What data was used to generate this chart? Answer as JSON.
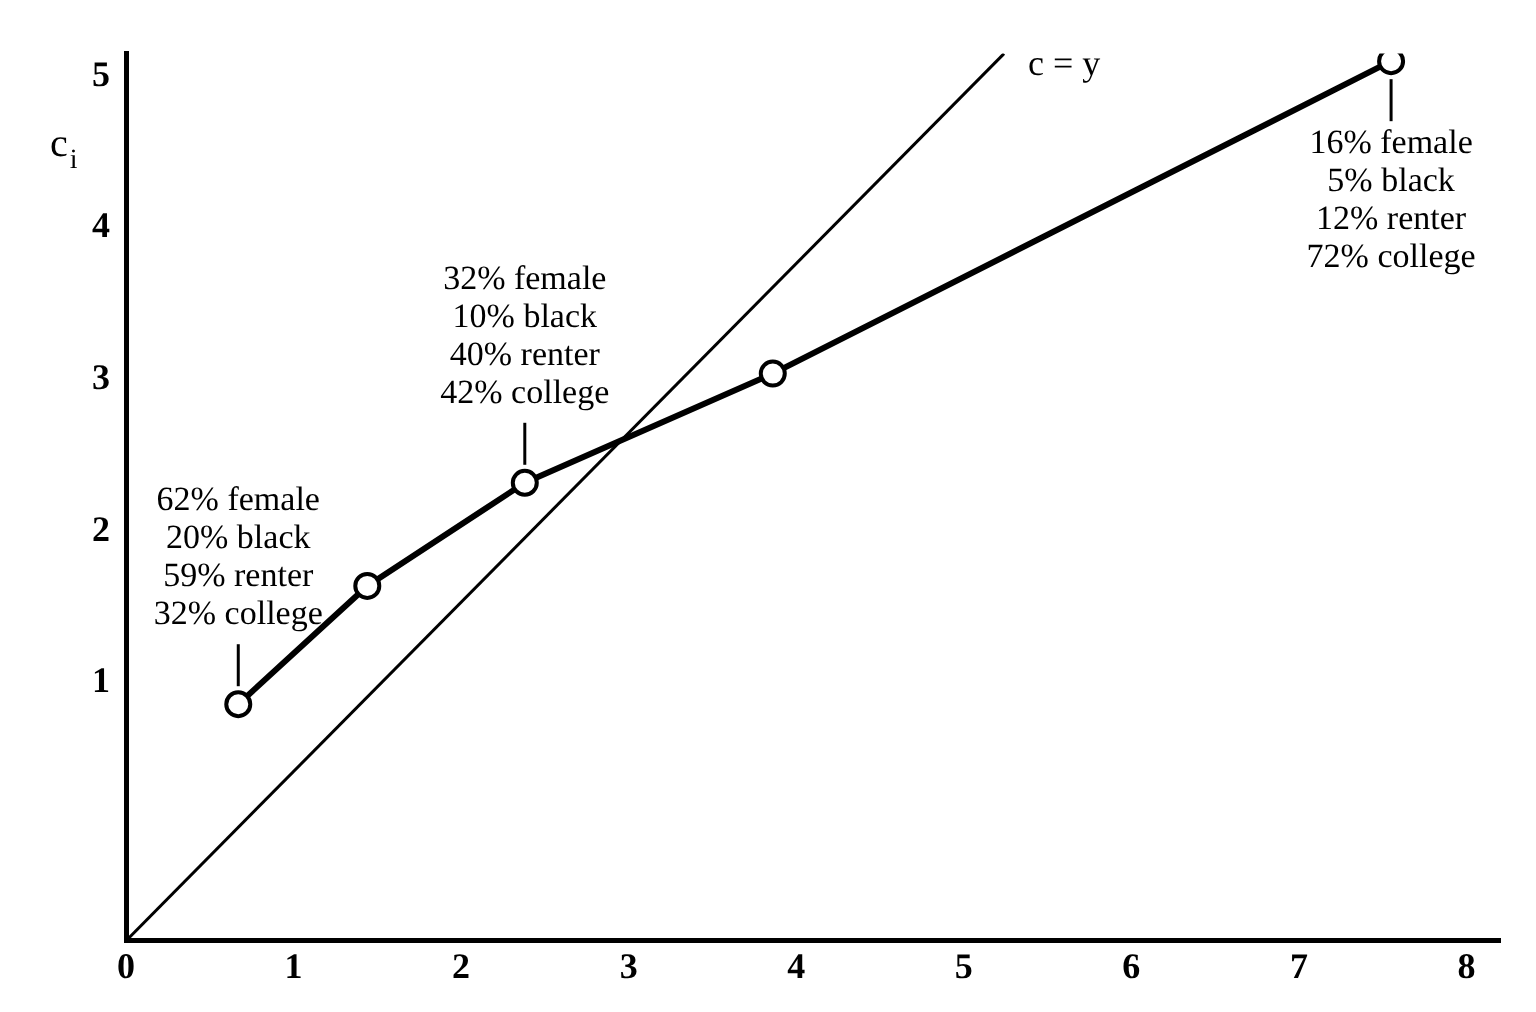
{
  "chart_data": {
    "type": "line",
    "ylabel": "c$_{i}$",
    "xlim": [
      0,
      8.2
    ],
    "xticks": [
      0,
      1,
      2,
      3,
      4,
      5,
      6,
      7,
      8
    ],
    "ylim": [
      -0.7,
      5.15
    ],
    "yticks": [
      1,
      2,
      3,
      4,
      5
    ],
    "grid": false,
    "legend": false,
    "marker": "circle",
    "line_style": "solid",
    "series": [
      {
        "color": "#000000",
        "x": [
          0.67,
          1.44,
          2.38,
          3.86,
          7.55
        ],
        "values": [
          0.86,
          1.64,
          2.32,
          3.04,
          5.1
        ]
      },
      {
        "name": "c = y",
        "type": "line",
        "marker": "none",
        "color": "#000000",
        "x": [
          0,
          5.24
        ],
        "values": [
          -0.7,
          5.15
        ]
      }
    ],
    "annotations": [
      {
        "text": "62% female\n20% black\n59% renter\n32% college",
        "x": 0.67,
        "y": 0.86
      },
      {
        "text": "32% female\n10% black\n40% renter\n42% college",
        "x": 2.38,
        "y": 2.32
      },
      {
        "text": "16% female\n5% black\n12% renter\n72% college",
        "x": 7.55,
        "y": 5.1
      }
    ]
  }
}
